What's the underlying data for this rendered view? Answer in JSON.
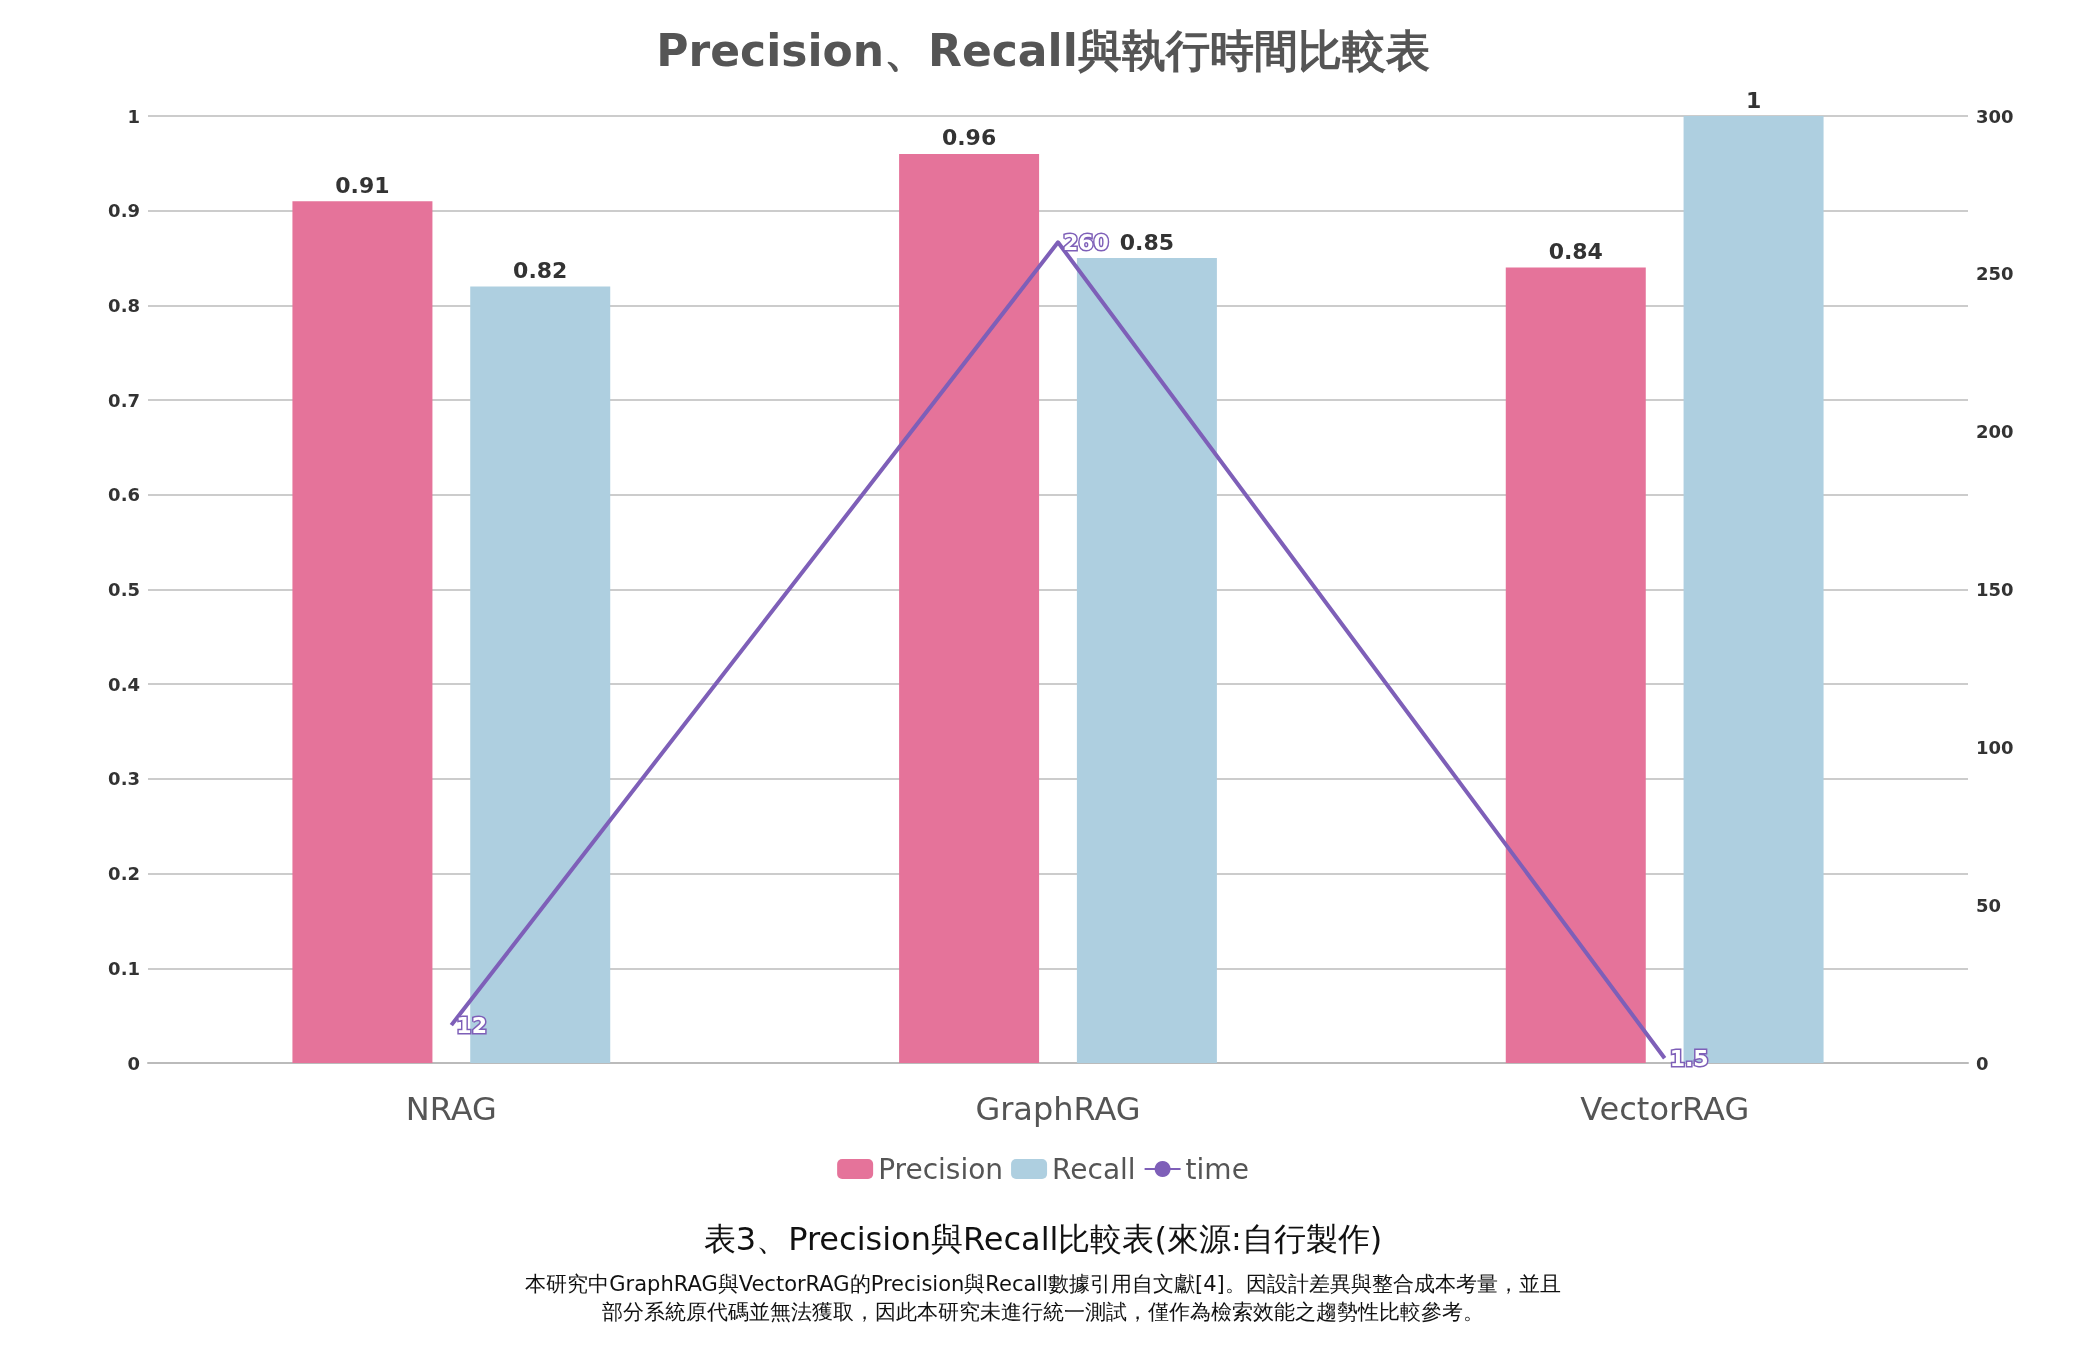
{
  "chart_data": {
    "type": "bar",
    "title": "Precision、Recall與執行時間比較表",
    "categories": [
      "NRAG",
      "GraphRAG",
      "VectorRAG"
    ],
    "series": [
      {
        "name": "Precision",
        "color": "#e5739a",
        "values": [
          0.91,
          0.96,
          0.84
        ]
      },
      {
        "name": "Recall",
        "color": "#aecfe0",
        "values": [
          0.82,
          0.85,
          1
        ]
      },
      {
        "name": "time",
        "type": "line",
        "axis": "y2",
        "color": "#7e5fb8",
        "values": [
          12,
          260,
          1.5
        ]
      }
    ],
    "ylim": [
      0,
      1
    ],
    "yticks": [
      0,
      0.1,
      0.2,
      0.3,
      0.4,
      0.5,
      0.6,
      0.7,
      0.8,
      0.9,
      1
    ],
    "y2lim": [
      0,
      300
    ],
    "y2ticks": [
      0,
      50,
      100,
      150,
      200,
      250,
      300
    ],
    "grid": true,
    "legend": "bottom",
    "data_labels": true,
    "marker": "none",
    "annotations": [
      "表3、Precision與Recall比較表(來源:自行製作)",
      "本研究中GraphRAG與VectorRAG的Precision與Recall數據引用自文獻[4]。因設計差異與整合成本考量，並且",
      "部分系統原代碼並無法獲取，因此本研究未進行統一測試，僅作為檢索效能之趨勢性比較參考。"
    ]
  }
}
